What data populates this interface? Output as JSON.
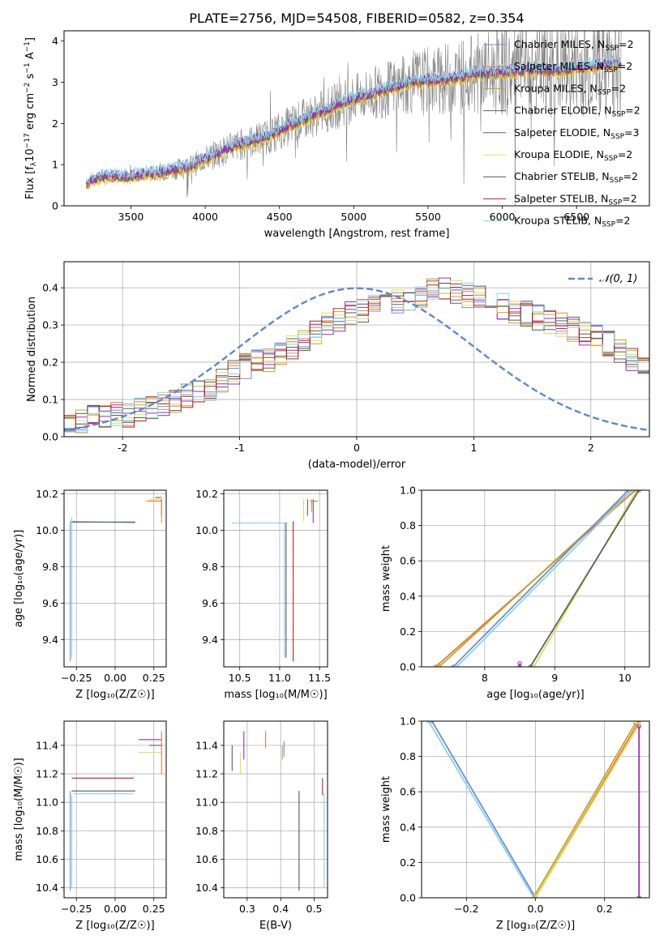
{
  "figure": {
    "title": "PLATE=2756, MJD=54508, FIBERID=0582, z=0.354"
  },
  "colors": {
    "Chabrier MILES": "#6b8fd6",
    "Salpeter MILES": "#e07b39",
    "Kroupa MILES": "#c9a227",
    "Chabrier ELODIE": "#606060",
    "Salpeter ELODIE": "#9b2fb3",
    "Kroupa ELODIE": "#d8e05a",
    "Chabrier STELIB": "#555555",
    "Salpeter STELIB": "#b22222",
    "Kroupa STELIB": "#8ad3e6",
    "data": "#808080",
    "normal": "#5b87d6"
  },
  "chart_data": [
    {
      "id": "spectrum",
      "type": "line",
      "title": "PLATE=2756, MJD=54508, FIBERID=0582, z=0.354",
      "xlabel": "wavelength [Angstrom, rest frame]",
      "ylabel_parts": [
        "Flux [f",
        "λ",
        "10",
        "−17",
        " erg cm",
        "−2",
        " s",
        "−1",
        " A",
        "−1",
        "]"
      ],
      "xlim": [
        3050,
        6990
      ],
      "ylim": [
        0,
        4.25
      ],
      "xticks": [
        3500,
        4000,
        4500,
        5000,
        5500,
        6000,
        6500
      ],
      "yticks": [
        0,
        1,
        2,
        3,
        4
      ],
      "grid": false,
      "legend_loc": "upper right",
      "legend": [
        {
          "name": "Chabrier MILES",
          "sub": "SSP",
          "n": "2"
        },
        {
          "name": "Salpeter MILES",
          "sub": "SSP",
          "n": "2"
        },
        {
          "name": "Kroupa MILES",
          "sub": "SSP",
          "n": "2"
        },
        {
          "name": "Chabrier ELODIE",
          "sub": "SSP",
          "n": "2"
        },
        {
          "name": "Salpeter ELODIE",
          "sub": "SSP",
          "n": "3"
        },
        {
          "name": "Kroupa ELODIE",
          "sub": "SSP",
          "n": "2"
        },
        {
          "name": "Chabrier STELIB",
          "sub": "SSP",
          "n": "2"
        },
        {
          "name": "Salpeter STELIB",
          "sub": "SSP",
          "n": "2"
        },
        {
          "name": "Kroupa STELIB",
          "sub": "SSP",
          "n": "2"
        }
      ],
      "continuum": [
        [
          3200,
          0.55
        ],
        [
          3300,
          0.7
        ],
        [
          3500,
          0.72
        ],
        [
          3700,
          0.82
        ],
        [
          3900,
          0.95
        ],
        [
          4000,
          1.15
        ],
        [
          4200,
          1.45
        ],
        [
          4400,
          1.65
        ],
        [
          4600,
          2.0
        ],
        [
          4800,
          2.3
        ],
        [
          5000,
          2.6
        ],
        [
          5200,
          2.8
        ],
        [
          5400,
          3.0
        ],
        [
          5600,
          3.05
        ],
        [
          5800,
          3.2
        ],
        [
          6000,
          3.25
        ],
        [
          6200,
          3.3
        ],
        [
          6400,
          3.3
        ],
        [
          6600,
          3.4
        ],
        [
          6800,
          3.45
        ]
      ],
      "data_start": 3200,
      "data_end": 6800,
      "data_noise": [
        [
          3200,
          0.08
        ],
        [
          3500,
          0.25
        ],
        [
          4000,
          0.55
        ],
        [
          4500,
          0.8
        ],
        [
          5000,
          1.0
        ],
        [
          5500,
          1.4
        ],
        [
          6000,
          1.8
        ],
        [
          6800,
          2.2
        ]
      ]
    },
    {
      "id": "residuals",
      "type": "bar",
      "xlabel": "(data-model)/error",
      "ylabel": "Normed distribution",
      "xlim": [
        -2.5,
        2.5
      ],
      "ylim": [
        0,
        0.47
      ],
      "xticks": [
        -2,
        -1,
        0,
        1,
        2
      ],
      "yticks": [
        0.0,
        0.1,
        0.2,
        0.3,
        0.4
      ],
      "grid": true,
      "legend_loc": "upper right",
      "legend": [
        {
          "name": "𝒩(0, 1)"
        }
      ],
      "bin_width": 0.1,
      "base_hist": [
        0.025,
        0.04,
        0.05,
        0.05,
        0.06,
        0.06,
        0.07,
        0.08,
        0.09,
        0.1,
        0.11,
        0.12,
        0.13,
        0.15,
        0.17,
        0.19,
        0.2,
        0.21,
        0.22,
        0.24,
        0.26,
        0.28,
        0.3,
        0.31,
        0.33,
        0.34,
        0.35,
        0.36,
        0.36,
        0.37,
        0.38,
        0.39,
        0.4,
        0.39,
        0.38,
        0.37,
        0.36,
        0.35,
        0.34,
        0.33,
        0.32,
        0.31,
        0.3,
        0.29,
        0.28,
        0.27,
        0.25,
        0.23,
        0.21,
        0.19,
        0.18,
        0.16,
        0.15,
        0.13,
        0.12,
        0.1,
        0.09,
        0.08,
        0.07,
        0.06,
        0.06,
        0.07,
        0.05,
        0.05,
        0.04,
        0.04,
        0.035,
        0.03,
        0.03,
        0.03
      ]
    },
    {
      "id": "z-age",
      "type": "scatter",
      "xlabel": "Z [log₁₀(Z/Z☉)]",
      "ylabel": "age  [log₁₀(age/yr)]",
      "xlim": [
        -0.33,
        0.33
      ],
      "ylim": [
        9.25,
        10.22
      ],
      "xticks": [
        -0.25,
        0.0,
        0.25
      ],
      "yticks": [
        9.4,
        9.6,
        9.8,
        10.0,
        10.2
      ],
      "grid": true,
      "xtick_labels": [
        "−0.25",
        "0.00",
        "0.25"
      ],
      "ytick_labels": [
        "9.4",
        "9.6",
        "9.8",
        "10.0",
        "10.2"
      ]
    },
    {
      "id": "mass-age",
      "type": "scatter",
      "xlabel": "mass [log₁₀(M/M☉)]",
      "ylabel": "",
      "xlim": [
        10.3,
        11.6
      ],
      "ylim": [
        9.25,
        10.22
      ],
      "xticks": [
        10.5,
        11.0,
        11.5
      ],
      "yticks": [
        9.4,
        9.6,
        9.8,
        10.0,
        10.2
      ],
      "grid": true,
      "xtick_labels": [
        "10.5",
        "11.0",
        "11.5"
      ],
      "ytick_labels": [
        "9.4",
        "9.6",
        "9.8",
        "10.0",
        "10.2"
      ]
    },
    {
      "id": "age-weight",
      "type": "line",
      "xlabel": "age  [log₁₀(age/yr)]",
      "ylabel": "mass weight",
      "xlim": [
        7.1,
        10.35
      ],
      "ylim": [
        0,
        1.0
      ],
      "xticks": [
        8,
        9,
        10
      ],
      "yticks": [
        0.0,
        0.2,
        0.4,
        0.6,
        0.8,
        1.0
      ],
      "grid": true,
      "xtick_labels": [
        "8",
        "9",
        "10"
      ],
      "ytick_labels": [
        "0.0",
        "0.2",
        "0.4",
        "0.6",
        "0.8",
        "1.0"
      ]
    },
    {
      "id": "z-mass",
      "type": "scatter",
      "xlabel": "Z [log₁₀(Z/Z☉)]",
      "ylabel": "mass [log₁₀(M/M☉)]",
      "xlim": [
        -0.33,
        0.33
      ],
      "ylim": [
        10.33,
        11.57
      ],
      "xticks": [
        -0.25,
        0.0,
        0.25
      ],
      "yticks": [
        10.4,
        10.6,
        10.8,
        11.0,
        11.2,
        11.4
      ],
      "grid": true,
      "xtick_labels": [
        "−0.25",
        "0.00",
        "0.25"
      ],
      "ytick_labels": [
        "10.4",
        "10.6",
        "10.8",
        "11.0",
        "11.2",
        "11.4"
      ]
    },
    {
      "id": "ebv-mass",
      "type": "scatter",
      "xlabel": "E(B-V)",
      "ylabel": "",
      "xlim": [
        0.23,
        0.54
      ],
      "ylim": [
        10.33,
        11.57
      ],
      "xticks": [
        0.3,
        0.4,
        0.5
      ],
      "yticks": [
        10.4,
        10.6,
        10.8,
        11.0,
        11.2,
        11.4
      ],
      "grid": true,
      "xtick_labels": [
        "0.3",
        "0.4",
        "0.5"
      ],
      "ytick_labels": [
        "10.4",
        "10.6",
        "10.8",
        "11.0",
        "11.2",
        "11.4"
      ]
    },
    {
      "id": "z-weight",
      "type": "line",
      "xlabel": "Z [log₁₀(Z/Z☉)]",
      "ylabel": "mass weight",
      "xlim": [
        -0.33,
        0.33
      ],
      "ylim": [
        0,
        1.0
      ],
      "xticks": [
        -0.2,
        0.0,
        0.2
      ],
      "yticks": [
        0.0,
        0.2,
        0.4,
        0.6,
        0.8,
        1.0
      ],
      "grid": true,
      "xtick_labels": [
        "−0.2",
        "0.0",
        "0.2"
      ],
      "ytick_labels": [
        "0.0",
        "0.2",
        "0.4",
        "0.6",
        "0.8",
        "1.0"
      ]
    }
  ],
  "ssp_lines": {
    "z-age": [
      {
        "model": "Chabrier MILES",
        "seg": [
          [
            -0.29,
            10.04
          ],
          [
            -0.29,
            9.28
          ]
        ]
      },
      {
        "model": "Kroupa STELIB",
        "seg": [
          [
            -0.29,
            10.05
          ],
          [
            0.13,
            10.04
          ]
        ]
      },
      {
        "model": "Chabrier STELIB",
        "seg": [
          [
            -0.29,
            10.045
          ],
          [
            0.13,
            10.045
          ]
        ]
      },
      {
        "model": "Kroupa STELIB",
        "seg": [
          [
            -0.28,
            10.07
          ],
          [
            -0.28,
            9.3
          ]
        ]
      },
      {
        "model": "Salpeter MILES",
        "seg": [
          [
            0.2,
            10.16
          ],
          [
            0.3,
            10.16
          ]
        ]
      },
      {
        "model": "Kroupa ELODIE",
        "seg": [
          [
            0.22,
            10.17
          ],
          [
            0.3,
            10.17
          ]
        ]
      },
      {
        "model": "Salpeter ELODIE",
        "seg": [
          [
            0.3,
            10.17
          ],
          [
            0.3,
            10.08
          ]
        ]
      },
      {
        "model": "Kroupa MILES",
        "seg": [
          [
            0.3,
            10.16
          ],
          [
            0.3,
            10.04
          ]
        ]
      },
      {
        "model": "Chabrier ELODIE",
        "seg": [
          [
            0.26,
            10.18
          ],
          [
            0.3,
            10.18
          ]
        ]
      }
    ],
    "mass-age": [
      {
        "model": "Kroupa STELIB",
        "seg": [
          [
            10.4,
            10.04
          ],
          [
            11.1,
            10.04
          ]
        ]
      },
      {
        "model": "Chabrier STELIB",
        "seg": [
          [
            11.08,
            10.04
          ],
          [
            11.08,
            9.3
          ]
        ]
      },
      {
        "model": "Kroupa STELIB",
        "seg": [
          [
            11.06,
            10.04
          ],
          [
            11.06,
            9.3
          ]
        ]
      },
      {
        "model": "Salpeter STELIB",
        "seg": [
          [
            11.17,
            10.05
          ],
          [
            11.17,
            9.28
          ]
        ]
      },
      {
        "model": "Kroupa ELODIE",
        "seg": [
          [
            11.3,
            10.17
          ],
          [
            11.3,
            10.05
          ]
        ]
      },
      {
        "model": "Chabrier ELODIE",
        "seg": [
          [
            11.35,
            10.17
          ],
          [
            11.35,
            10.08
          ]
        ]
      },
      {
        "model": "Salpeter ELODIE",
        "seg": [
          [
            11.42,
            10.17
          ],
          [
            11.42,
            10.04
          ]
        ]
      },
      {
        "model": "Salpeter MILES",
        "seg": [
          [
            11.38,
            10.16
          ],
          [
            11.48,
            10.16
          ]
        ]
      },
      {
        "model": "Kroupa MILES",
        "seg": [
          [
            11.4,
            10.17
          ],
          [
            11.4,
            10.1
          ]
        ]
      }
    ],
    "age-weight": [
      {
        "model": "Salpeter MILES",
        "seg": [
          [
            7.3,
            0.0
          ],
          [
            10.15,
            1.0
          ]
        ]
      },
      {
        "model": "Kroupa MILES",
        "seg": [
          [
            7.35,
            0.0
          ],
          [
            10.1,
            1.0
          ]
        ]
      },
      {
        "model": "Chabrier MILES",
        "seg": [
          [
            7.55,
            0.0
          ],
          [
            10.05,
            1.0
          ]
        ]
      },
      {
        "model": "Kroupa STELIB",
        "seg": [
          [
            7.6,
            0.0
          ],
          [
            10.1,
            1.0
          ]
        ]
      },
      {
        "model": "Kroupa ELODIE",
        "seg": [
          [
            8.7,
            0.0
          ],
          [
            10.17,
            1.0
          ]
        ]
      },
      {
        "model": "Chabrier ELODIE",
        "seg": [
          [
            8.65,
            0.0
          ],
          [
            10.2,
            1.0
          ]
        ]
      },
      {
        "model": "Salpeter ELODIE",
        "seg": [
          [
            8.5,
            0.0
          ],
          [
            8.5,
            0.02
          ]
        ]
      }
    ],
    "z-mass": [
      {
        "model": "Salpeter STELIB",
        "seg": [
          [
            -0.28,
            11.17
          ],
          [
            0.12,
            11.17
          ]
        ]
      },
      {
        "model": "Chabrier STELIB",
        "seg": [
          [
            -0.28,
            11.08
          ],
          [
            0.13,
            11.08
          ]
        ]
      },
      {
        "model": "Kroupa STELIB",
        "seg": [
          [
            -0.27,
            11.06
          ],
          [
            0.12,
            11.06
          ]
        ]
      },
      {
        "model": "Chabrier MILES",
        "seg": [
          [
            -0.29,
            11.08
          ],
          [
            -0.29,
            10.38
          ]
        ]
      },
      {
        "model": "Kroupa STELIB",
        "seg": [
          [
            -0.28,
            11.05
          ],
          [
            -0.28,
            10.4
          ]
        ]
      },
      {
        "model": "Salpeter ELODIE",
        "seg": [
          [
            0.15,
            11.44
          ],
          [
            0.3,
            11.44
          ]
        ]
      },
      {
        "model": "Kroupa ELODIE",
        "seg": [
          [
            0.15,
            11.35
          ],
          [
            0.3,
            11.35
          ]
        ]
      },
      {
        "model": "Salpeter MILES",
        "seg": [
          [
            0.3,
            11.5
          ],
          [
            0.3,
            11.2
          ]
        ]
      },
      {
        "model": "Chabrier ELODIE",
        "seg": [
          [
            0.22,
            11.4
          ],
          [
            0.3,
            11.4
          ]
        ]
      }
    ],
    "ebv-mass": [
      {
        "model": "Chabrier ELODIE",
        "seg": [
          [
            0.255,
            11.4
          ],
          [
            0.255,
            11.22
          ]
        ]
      },
      {
        "model": "Kroupa ELODIE",
        "seg": [
          [
            0.28,
            11.35
          ],
          [
            0.28,
            11.2
          ]
        ]
      },
      {
        "model": "Salpeter ELODIE",
        "seg": [
          [
            0.29,
            11.5
          ],
          [
            0.29,
            11.3
          ]
        ]
      },
      {
        "model": "Salpeter MILES",
        "seg": [
          [
            0.355,
            11.5
          ],
          [
            0.355,
            11.38
          ]
        ]
      },
      {
        "model": "Chabrier MILES",
        "seg": [
          [
            0.41,
            11.43
          ],
          [
            0.41,
            11.32
          ]
        ]
      },
      {
        "model": "Kroupa MILES",
        "seg": [
          [
            0.405,
            11.4
          ],
          [
            0.405,
            11.3
          ]
        ]
      },
      {
        "model": "Chabrier STELIB",
        "seg": [
          [
            0.455,
            11.08
          ],
          [
            0.455,
            10.38
          ]
        ]
      },
      {
        "model": "Salpeter STELIB",
        "seg": [
          [
            0.525,
            11.17
          ],
          [
            0.525,
            11.05
          ]
        ]
      },
      {
        "model": "Kroupa STELIB",
        "seg": [
          [
            0.53,
            11.06
          ],
          [
            0.53,
            10.4
          ]
        ]
      }
    ],
    "z-weight": [
      {
        "model": "Chabrier MILES",
        "seg": [
          [
            -0.3,
            1.0
          ],
          [
            0.0,
            0.0
          ]
        ]
      },
      {
        "model": "Kroupa STELIB",
        "seg": [
          [
            -0.31,
            1.0
          ],
          [
            -0.005,
            0.0
          ]
        ]
      },
      {
        "model": "Salpeter MILES",
        "seg": [
          [
            0.0,
            0.0
          ],
          [
            0.3,
            1.0
          ]
        ]
      },
      {
        "model": "Kroupa MILES",
        "seg": [
          [
            0.0,
            0.02
          ],
          [
            0.29,
            0.99
          ]
        ]
      },
      {
        "model": "Kroupa ELODIE",
        "seg": [
          [
            0.0,
            0.0
          ],
          [
            0.3,
            0.98
          ]
        ]
      },
      {
        "model": "Salpeter ELODIE",
        "seg": [
          [
            0.3,
            0.0
          ],
          [
            0.3,
            0.97
          ]
        ]
      }
    ]
  }
}
